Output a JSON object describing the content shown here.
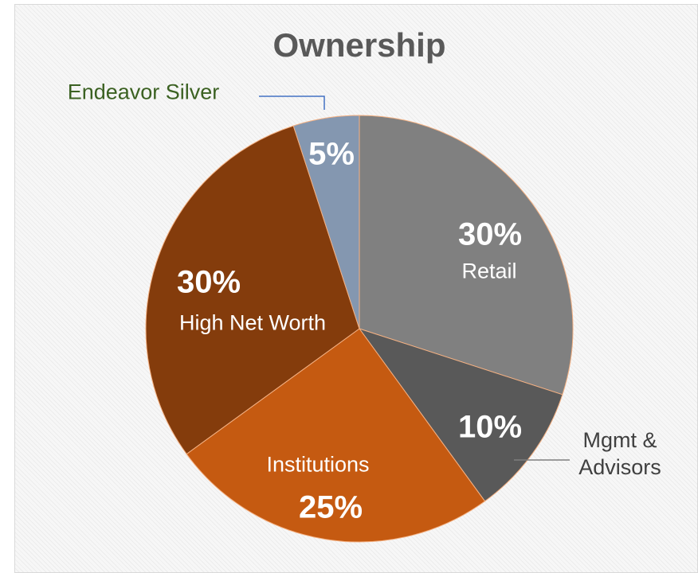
{
  "chart_data": {
    "type": "pie",
    "title": "Ownership",
    "categories": [
      "Retail",
      "Mgmt & Advisors",
      "Institutions",
      "High Net Worth",
      "Endeavor Silver"
    ],
    "values": [
      30,
      10,
      25,
      30,
      5
    ],
    "value_labels": [
      "30%",
      "10%",
      "25%",
      "30%",
      "5%"
    ],
    "colors": [
      "#808080",
      "#595959",
      "#c55a11",
      "#843c0c",
      "#8497b0"
    ]
  }
}
